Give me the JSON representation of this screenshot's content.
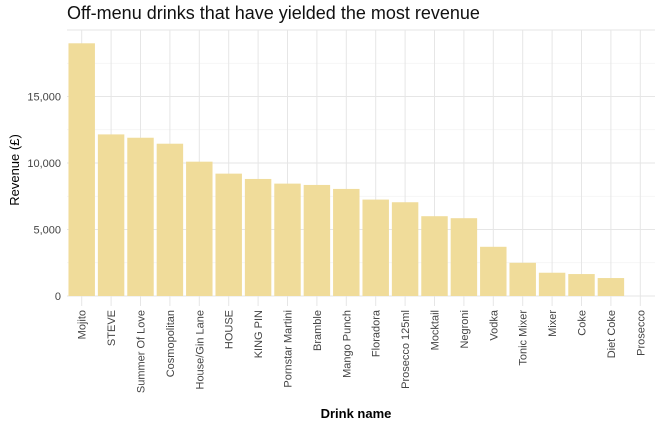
{
  "chart_data": {
    "type": "bar",
    "title": "Off-menu drinks that have yielded the most revenue",
    "xlabel": "Drink name",
    "ylabel": "Revenue (£)",
    "categories": [
      "Mojito",
      "STEVE",
      "Summer Of Love",
      "Cosmopolitan",
      "House/Gin Lane",
      "HOUSE",
      "KING PIN",
      "Pornstar Martini",
      "Bramble",
      "Mango Punch",
      "Floradora",
      "Prosecco 125ml",
      "Mocktail",
      "Negroni",
      "Vodka",
      "Tonic Mixer",
      "Mixer",
      "Coke",
      "Diet Coke",
      "Prosecco"
    ],
    "values": [
      19000,
      12150,
      11900,
      11450,
      10100,
      9200,
      8800,
      8450,
      8350,
      8050,
      7250,
      7050,
      6000,
      5850,
      3700,
      2500,
      1750,
      1650,
      1350,
      0
    ],
    "ylim": [
      0,
      20000
    ],
    "yticks": [
      0,
      5000,
      10000,
      15000
    ],
    "ytick_labels": [
      "0",
      "5,000",
      "10,000",
      "15,000"
    ],
    "grid": true,
    "bar_color": "#f0dc9a"
  }
}
